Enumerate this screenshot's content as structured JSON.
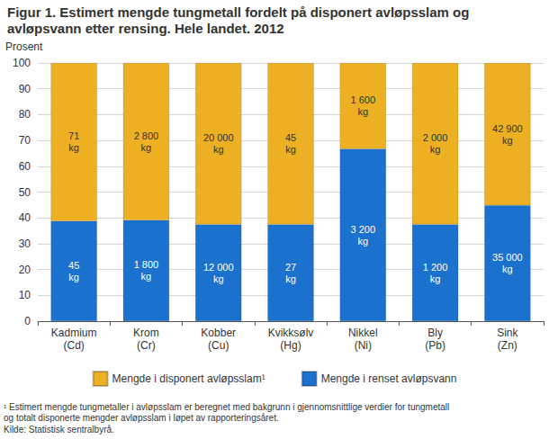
{
  "chart_data": {
    "type": "bar",
    "title": "Figur 1. Estimert mengde tungmetall fordelt på disponert avløpsslam og\navløpsvann etter rensing. Hele landet. 2012",
    "ylabel": "Prosent",
    "categories": [
      "Kadmium\n(Cd)",
      "Krom\n(Cr)",
      "Kobber\n(Cu)",
      "Kvikksølv\n(Hg)",
      "Nikkel\n(Ni)",
      "Bly\n(Pb)",
      "Sink\n(Zn)"
    ],
    "series": [
      {
        "name": "Mengde i renset avløpsvann",
        "color": "#1b72ce",
        "values": [
          38.8,
          39.1,
          37.5,
          37.5,
          66.7,
          37.5,
          44.9
        ],
        "amount_labels": [
          "45\nkg",
          "1 800\nkg",
          "12 000\nkg",
          "27\nkg",
          "3 200\nkg",
          "1 200\nkg",
          "35 000\nkg"
        ]
      },
      {
        "name": "Mengde i disponert avløpsslam¹",
        "color": "#ecb022",
        "values": [
          61.2,
          60.9,
          62.5,
          62.5,
          33.3,
          62.5,
          55.1
        ],
        "amount_labels": [
          "71\nkg",
          "2 800\nkg",
          "20 000\nkg",
          "45\nkg",
          "1 600\nkg",
          "2 000\nkg",
          "42 900\nkg"
        ]
      }
    ],
    "stacked": true,
    "ylim": [
      0,
      100
    ],
    "yticks": [
      0,
      10,
      20,
      30,
      40,
      50,
      60,
      70,
      80,
      90,
      100
    ],
    "grid": true,
    "legend": "bottom",
    "footnote": "¹ Estimert mengde tungmetaller i avløpsslam er beregnet med bakgrunn i gjennomsnittlige verdier for tungmetall\nog totalt disponerte mengder avløpsslam i løpet av rapporteringsåret.",
    "source": "Kilde: Statistisk sentralbyrå."
  }
}
